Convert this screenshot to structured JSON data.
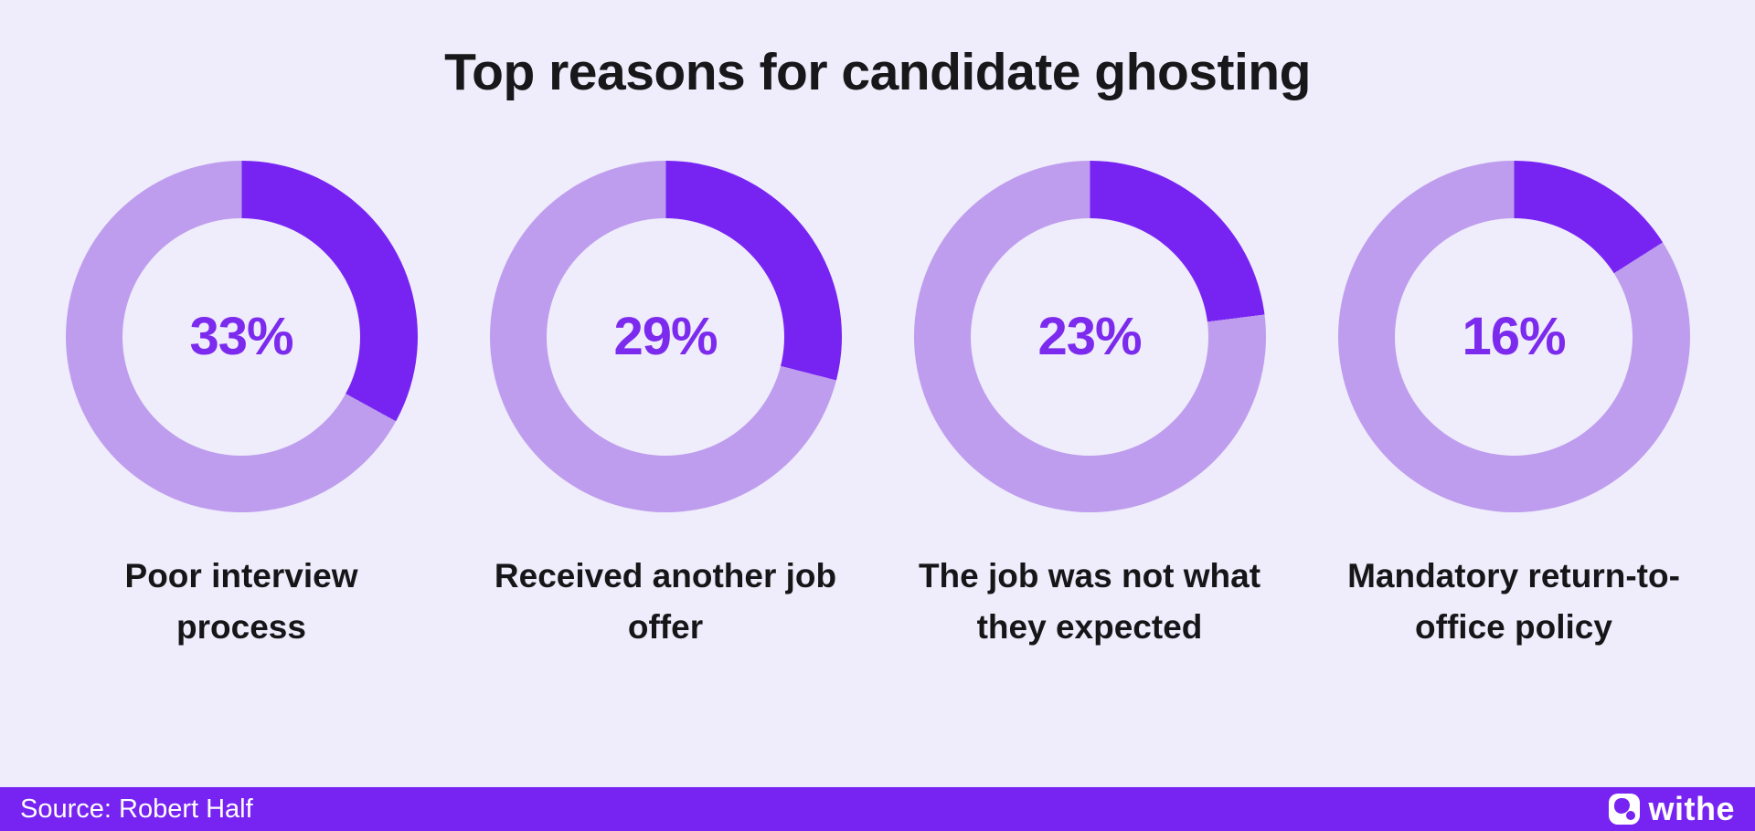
{
  "page": {
    "background_color": "#EFECFB"
  },
  "header": {
    "title": "Top reasons for candidate ghosting"
  },
  "chart_data": {
    "type": "pie",
    "variant": "donut-small-multiples",
    "title": "Top reasons for candidate ghosting",
    "unit": "percent",
    "legend": "none",
    "start_angle_deg": 0,
    "direction": "clockwise",
    "series": [
      {
        "label": "Poor interview process",
        "label_lines": [
          "Poor interview",
          "process"
        ],
        "value": 33,
        "display": "33%"
      },
      {
        "label": "Received another job offer",
        "label_lines": [
          "Received another job",
          "offer"
        ],
        "value": 29,
        "display": "29%"
      },
      {
        "label": "The job was not what they expected",
        "label_lines": [
          "The job was not what",
          "they expected"
        ],
        "value": 23,
        "display": "23%"
      },
      {
        "label": "Mandatory return-to-office policy",
        "label_lines": [
          "Mandatory return-to-",
          "office policy"
        ],
        "value": 16,
        "display": "16%"
      }
    ],
    "colors": {
      "filled_slice": "#7724F2",
      "remainder_slice": "#BE9DEE",
      "value_text": "#7C2BEE",
      "hole": "#EFECFB",
      "label_text": "#161619"
    }
  },
  "footer": {
    "source": "Source: Robert Half",
    "background_color": "#7724F2",
    "brand": {
      "name": "withe",
      "icon": "withe-logo-icon"
    }
  }
}
